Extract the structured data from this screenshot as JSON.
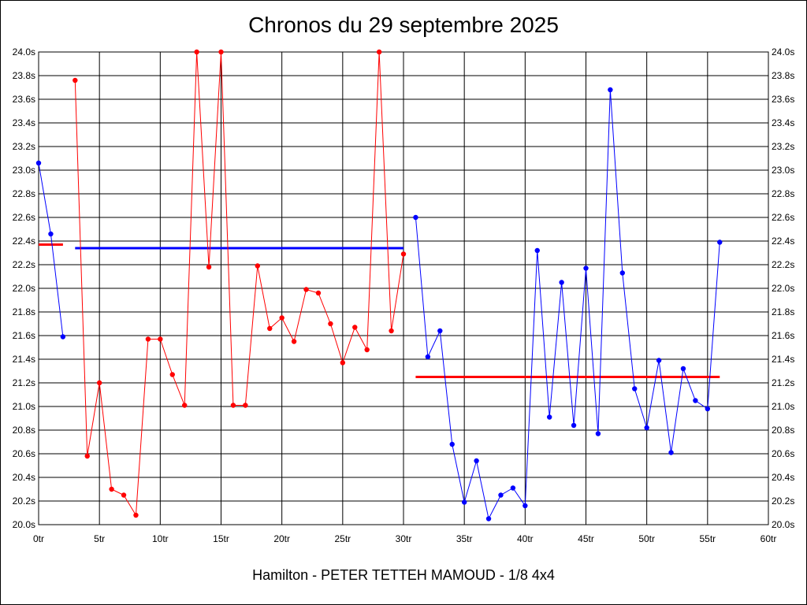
{
  "chart_data": {
    "type": "line",
    "title": "Chronos du 29 septembre 2025",
    "footer": "Hamilton - PETER TETTEH MAMOUD - 1/8 4x4",
    "xlim": [
      0,
      60
    ],
    "ylim": [
      20.0,
      24.0
    ],
    "x_ticks": [
      0,
      5,
      10,
      15,
      20,
      25,
      30,
      35,
      40,
      45,
      50,
      55,
      60
    ],
    "x_tick_labels": [
      "0tr",
      "5tr",
      "10tr",
      "15tr",
      "20tr",
      "25tr",
      "30tr",
      "35tr",
      "40tr",
      "45tr",
      "50tr",
      "55tr",
      "60tr"
    ],
    "y_ticks": [
      20.0,
      20.2,
      20.4,
      20.6,
      20.8,
      21.0,
      21.2,
      21.4,
      21.6,
      21.8,
      22.0,
      22.2,
      22.4,
      22.6,
      22.8,
      23.0,
      23.2,
      23.4,
      23.6,
      23.8,
      24.0
    ],
    "y_tick_labels": [
      "20.0s",
      "20.2s",
      "20.4s",
      "20.6s",
      "20.8s",
      "21.0s",
      "21.2s",
      "21.4s",
      "21.6s",
      "21.8s",
      "22.0s",
      "22.2s",
      "22.4s",
      "22.6s",
      "22.8s",
      "23.0s",
      "23.2s",
      "23.4s",
      "23.6s",
      "23.8s",
      "24.0s"
    ],
    "grid": true,
    "series": [
      {
        "color": "#0000ff",
        "x": [
          0,
          1,
          2
        ],
        "y": [
          23.06,
          22.46,
          21.59
        ]
      },
      {
        "color": "#ff0000",
        "x": [
          3,
          4,
          5,
          6,
          7,
          8,
          9,
          10,
          11,
          12,
          13,
          14,
          15,
          16,
          17,
          18,
          19,
          20,
          21,
          22,
          23,
          24,
          25,
          26,
          27,
          28,
          29,
          30
        ],
        "y": [
          23.76,
          20.58,
          21.2,
          20.3,
          20.25,
          20.08,
          21.57,
          21.57,
          21.27,
          21.01,
          24.0,
          22.18,
          24.0,
          21.01,
          21.01,
          22.19,
          21.66,
          21.75,
          21.55,
          21.99,
          21.96,
          21.7,
          21.37,
          21.67,
          21.48,
          24.0,
          21.64,
          22.29
        ]
      },
      {
        "color": "#0000ff",
        "x": [
          31,
          32,
          33,
          34,
          35,
          36,
          37,
          38,
          39,
          40,
          41,
          42,
          43,
          44,
          45,
          46,
          47,
          48,
          49,
          50,
          51,
          52,
          53,
          54,
          55,
          56
        ],
        "y": [
          22.6,
          21.42,
          21.64,
          20.68,
          20.19,
          20.54,
          20.05,
          20.25,
          20.31,
          20.16,
          22.32,
          20.91,
          22.05,
          20.84,
          22.17,
          20.77,
          23.68,
          22.13,
          21.15,
          20.82,
          21.39,
          20.61,
          21.32,
          21.05,
          20.98,
          22.39
        ]
      }
    ],
    "averages": [
      {
        "color": "#ff0000",
        "x0": 0,
        "x1": 2,
        "y": 22.37
      },
      {
        "color": "#0000ff",
        "x0": 3,
        "x1": 30,
        "y": 22.34
      },
      {
        "color": "#ff0000",
        "x0": 31,
        "x1": 56,
        "y": 21.25
      }
    ]
  }
}
